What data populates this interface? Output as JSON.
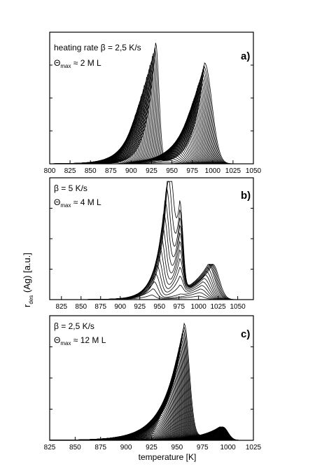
{
  "figure": {
    "ylabel_main": "r",
    "ylabel_sub": "des",
    "ylabel_rest": " (Ag) [a.u.]",
    "xlabel": "temperature [K]"
  },
  "chart_data": [
    {
      "type": "line",
      "panel_label": "a)",
      "annotation_line1": "heating rate β = 2,5 K/s",
      "annotation_theta": "Θ",
      "annotation_theta_sub": "max",
      "annotation_theta_rest": " ≈ 2 M L",
      "xlim": [
        800,
        1050
      ],
      "ylim": [
        0,
        1
      ],
      "xticks": [
        800,
        825,
        850,
        875,
        900,
        925,
        950,
        975,
        1000,
        1025,
        1050
      ],
      "yticks_labelled": false,
      "series_count": 36,
      "peaks": [
        {
          "center": 930,
          "max_amplitude": 0.94,
          "description": "low-temperature desorption peak"
        },
        {
          "center": 990,
          "max_amplitude": 0.79,
          "description": "high-temperature desorption peak"
        }
      ]
    },
    {
      "type": "line",
      "panel_label": "b)",
      "annotation_line1": "β = 5 K/s",
      "annotation_theta": "Θ",
      "annotation_theta_sub": "max",
      "annotation_theta_rest": " ≈ 4 M L",
      "xlim": [
        810,
        1070
      ],
      "ylim": [
        0,
        1
      ],
      "xticks": [
        825,
        850,
        875,
        900,
        925,
        950,
        975,
        1000,
        1025,
        1050
      ],
      "yticks_labelled": false,
      "series_count": 14,
      "peaks": [
        {
          "center": 962,
          "max_amplitude": 0.97,
          "description": "low-temperature peak"
        },
        {
          "center": 976,
          "max_amplitude": 0.76,
          "description": "shoulder peak"
        },
        {
          "center": 1018,
          "max_amplitude": 0.3,
          "description": "high-temperature peak"
        }
      ]
    },
    {
      "type": "line",
      "panel_label": "c)",
      "annotation_line1": "β = 2,5 K/s",
      "annotation_theta": "Θ",
      "annotation_theta_sub": "max",
      "annotation_theta_rest": " ≈ 12 M L",
      "xlim": [
        825,
        1025
      ],
      "ylim": [
        0,
        1
      ],
      "xticks": [
        825,
        850,
        875,
        900,
        925,
        950,
        975,
        1000,
        1025
      ],
      "yticks_labelled": false,
      "series_count": 60,
      "peaks": [
        {
          "center": 957,
          "max_amplitude": 0.95,
          "description": "low-temperature peak"
        },
        {
          "center": 995,
          "max_amplitude": 0.11,
          "description": "high-temperature peak"
        }
      ]
    }
  ]
}
